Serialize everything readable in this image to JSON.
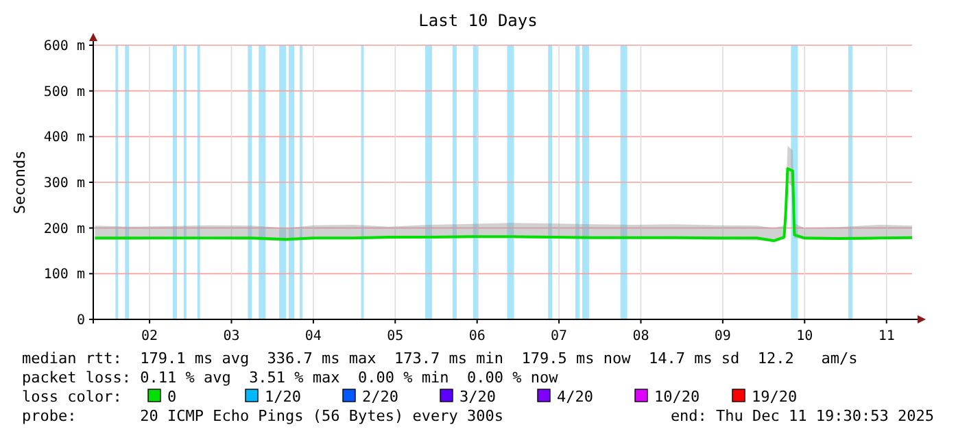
{
  "chart_data": {
    "type": "line",
    "title": "Last 10 Days",
    "ylabel": "Seconds",
    "x": [
      "2025-12-01T20:00",
      "2025-12-02T06:00",
      "2025-12-02T18:00",
      "2025-12-03T06:00",
      "2025-12-03T18:00",
      "2025-12-04T04:00",
      "2025-12-04T12:00",
      "2025-12-05T00:00",
      "2025-12-05T10:00",
      "2025-12-05T22:00",
      "2025-12-06T10:00",
      "2025-12-06T22:00",
      "2025-12-07T10:00",
      "2025-12-07T22:00",
      "2025-12-08T10:00",
      "2025-12-08T22:00",
      "2025-12-09T10:00",
      "2025-12-09T22:00",
      "2025-12-10T03:00",
      "2025-12-10T06:00",
      "2025-12-10T06:30",
      "2025-12-10T07:00",
      "2025-12-10T08:30",
      "2025-12-10T09:00",
      "2025-12-10T12:00",
      "2025-12-10T22:00",
      "2025-12-11T10:00",
      "2025-12-11T19:30"
    ],
    "series": [
      {
        "name": "0",
        "color": "#00e000",
        "values": [
          178,
          178,
          178,
          178,
          178,
          175,
          178,
          178,
          180,
          180,
          181,
          181,
          180,
          179,
          179,
          179,
          178,
          178,
          172,
          180,
          240,
          330,
          325,
          185,
          178,
          177,
          178,
          179
        ],
        "lower": [
          174,
          174,
          175,
          175,
          174,
          171,
          175,
          175,
          176,
          177,
          178,
          178,
          177,
          176,
          176,
          175,
          174,
          173,
          170,
          176,
          230,
          300,
          290,
          178,
          174,
          174,
          175,
          175
        ],
        "upper": [
          205,
          203,
          204,
          206,
          205,
          200,
          206,
          207,
          203,
          207,
          209,
          211,
          210,
          208,
          207,
          208,
          206,
          205,
          200,
          205,
          260,
          380,
          370,
          210,
          200,
          202,
          207,
          205
        ]
      },
      {
        "name": "1/20",
        "color": "#00b8ff",
        "values": [
          null,
          null,
          null,
          null,
          null,
          null,
          null,
          null,
          null,
          null,
          null,
          null,
          null,
          null,
          null,
          null,
          null,
          null,
          null,
          null,
          null,
          null,
          null,
          null,
          null,
          null,
          null,
          null
        ]
      },
      {
        "name": "2/20",
        "color": "#0059ff",
        "values": [
          null,
          null,
          null,
          null,
          null,
          null,
          null,
          null,
          null,
          null,
          null,
          null,
          null,
          null,
          null,
          null,
          null,
          null,
          null,
          null,
          null,
          null,
          null,
          null,
          null,
          null,
          null,
          null
        ]
      },
      {
        "name": "3/20",
        "color": "#5e00ff",
        "values": [
          null,
          null,
          null,
          null,
          null,
          null,
          null,
          null,
          null,
          null,
          null,
          null,
          null,
          null,
          null,
          null,
          null,
          null,
          null,
          null,
          null,
          null,
          null,
          null,
          null,
          null,
          null,
          null
        ]
      },
      {
        "name": "4/20",
        "color": "#7e00ff",
        "values": [
          null,
          null,
          null,
          null,
          null,
          null,
          null,
          null,
          null,
          null,
          null,
          null,
          null,
          null,
          null,
          null,
          null,
          null,
          null,
          null,
          null,
          null,
          null,
          null,
          null,
          null,
          null,
          null
        ]
      },
      {
        "name": "10/20",
        "color": "#dd00ff",
        "values": [
          null,
          null,
          null,
          null,
          null,
          null,
          null,
          null,
          null,
          null,
          null,
          null,
          null,
          null,
          null,
          null,
          null,
          null,
          null,
          null,
          null,
          null,
          null,
          null,
          null,
          null,
          null,
          null
        ]
      },
      {
        "name": "19/20",
        "color": "#ff0000",
        "values": [
          null,
          null,
          null,
          null,
          null,
          null,
          null,
          null,
          null,
          null,
          null,
          null,
          null,
          null,
          null,
          null,
          null,
          null,
          null,
          null,
          null,
          null,
          null,
          null,
          null,
          null,
          null,
          null
        ]
      }
    ],
    "legend_title": "loss color:",
    "legend": "bottom",
    "xlim": [
      "2025-12-01T19:30",
      "2025-12-11T19:30"
    ],
    "xticks": [
      {
        "value": "2025-12-02T12:00",
        "label": "02"
      },
      {
        "value": "2025-12-03T12:00",
        "label": "03"
      },
      {
        "value": "2025-12-04T12:00",
        "label": "04"
      },
      {
        "value": "2025-12-05T12:00",
        "label": "05"
      },
      {
        "value": "2025-12-06T12:00",
        "label": "06"
      },
      {
        "value": "2025-12-07T12:00",
        "label": "07"
      },
      {
        "value": "2025-12-08T12:00",
        "label": "08"
      },
      {
        "value": "2025-12-09T12:00",
        "label": "09"
      },
      {
        "value": "2025-12-10T12:00",
        "label": "10"
      },
      {
        "value": "2025-12-11T12:00",
        "label": "11"
      }
    ],
    "ylim": [
      0,
      600
    ],
    "yticks": [
      0,
      {
        "value": 100,
        "label": "100 m"
      },
      {
        "value": 200,
        "label": "200 m"
      },
      {
        "value": 300,
        "label": "300 m"
      },
      {
        "value": 400,
        "label": "400 m"
      },
      {
        "value": 500,
        "label": "500 m"
      },
      {
        "value": 600,
        "label": "600 m"
      }
    ],
    "grid": true,
    "bands": [
      {
        "axis": "x",
        "from": "2025-12-02T02:00",
        "to": "2025-12-02T02:48",
        "color": "#a8e4fa"
      },
      {
        "axis": "x",
        "from": "2025-12-02T04:48",
        "to": "2025-12-02T06:00",
        "color": "#a8e4fa"
      },
      {
        "axis": "x",
        "from": "2025-12-02T18:48",
        "to": "2025-12-02T20:00",
        "color": "#a8e4fa"
      },
      {
        "axis": "x",
        "from": "2025-12-02T22:00",
        "to": "2025-12-02T22:48",
        "color": "#a8e4fa"
      },
      {
        "axis": "x",
        "from": "2025-12-03T02:00",
        "to": "2025-12-03T02:48",
        "color": "#a8e4fa"
      },
      {
        "axis": "x",
        "from": "2025-12-03T16:48",
        "to": "2025-12-03T18:00",
        "color": "#a8e4fa"
      },
      {
        "axis": "x",
        "from": "2025-12-03T20:00",
        "to": "2025-12-03T22:00",
        "color": "#a8e4fa"
      },
      {
        "axis": "x",
        "from": "2025-12-04T02:00",
        "to": "2025-12-04T04:00",
        "color": "#a8e4fa"
      },
      {
        "axis": "x",
        "from": "2025-12-04T04:48",
        "to": "2025-12-04T06:24",
        "color": "#a8e4fa"
      },
      {
        "axis": "x",
        "from": "2025-12-04T08:00",
        "to": "2025-12-04T08:48",
        "color": "#a8e4fa"
      },
      {
        "axis": "x",
        "from": "2025-12-05T02:00",
        "to": "2025-12-05T02:48",
        "color": "#a8e4fa"
      },
      {
        "axis": "x",
        "from": "2025-12-05T20:48",
        "to": "2025-12-05T22:48",
        "color": "#a8e4fa"
      },
      {
        "axis": "x",
        "from": "2025-12-06T04:48",
        "to": "2025-12-06T06:00",
        "color": "#a8e4fa"
      },
      {
        "axis": "x",
        "from": "2025-12-06T10:48",
        "to": "2025-12-06T12:24",
        "color": "#a8e4fa"
      },
      {
        "axis": "x",
        "from": "2025-12-06T20:48",
        "to": "2025-12-06T22:48",
        "color": "#a8e4fa"
      },
      {
        "axis": "x",
        "from": "2025-12-07T08:48",
        "to": "2025-12-07T10:00",
        "color": "#a8e4fa"
      },
      {
        "axis": "x",
        "from": "2025-12-07T16:48",
        "to": "2025-12-07T18:00",
        "color": "#a8e4fa"
      },
      {
        "axis": "x",
        "from": "2025-12-07T18:48",
        "to": "2025-12-07T20:48",
        "color": "#a8e4fa"
      },
      {
        "axis": "x",
        "from": "2025-12-08T06:00",
        "to": "2025-12-08T08:00",
        "color": "#a8e4fa"
      },
      {
        "axis": "x",
        "from": "2025-12-10T08:00",
        "to": "2025-12-10T10:00",
        "color": "#a8e4fa"
      },
      {
        "axis": "x",
        "from": "2025-12-11T00:48",
        "to": "2025-12-11T02:00",
        "color": "#a8e4fa"
      }
    ],
    "annotations": [
      "median rtt:  179.1 ms avg  336.7 ms max  173.7 ms min  179.5 ms now  14.7 ms sd  12.2   am/s",
      "packet loss: 0.11 % avg  3.51 % max  0.00 % min  0.00 % now",
      "probe:       20 ICMP Echo Pings (56 Bytes) every 300s",
      "end: Thu Dec 11 19:30:53 2025"
    ]
  }
}
